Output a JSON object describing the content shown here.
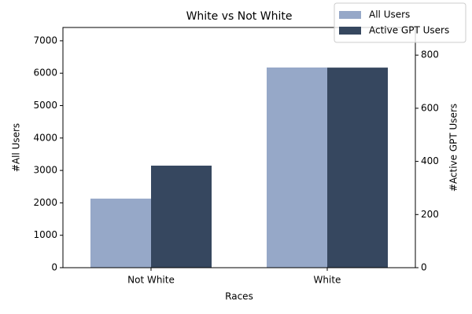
{
  "chart_data": {
    "type": "bar",
    "title": "White vs Not White",
    "x_label": "Races",
    "y_label": "#All Users",
    "y2_label": "#Active GPT Users",
    "categories": [
      "Not White",
      "White"
    ],
    "series": [
      {
        "name": "All Users",
        "color": "#96a8c8",
        "values": [
          2130,
          6175
        ]
      },
      {
        "name": "Active GPT Users",
        "color": "#36475f",
        "axis": "y2",
        "values": [
          384,
          753
        ]
      }
    ],
    "ylim": [
      0,
      7410
    ],
    "yticks": [
      0,
      1000,
      2000,
      3000,
      4000,
      5000,
      6000,
      7000
    ],
    "y2lim": [
      0,
      904
    ],
    "y2ticks": [
      0,
      200,
      400,
      600,
      800
    ],
    "legend": "upper right"
  }
}
